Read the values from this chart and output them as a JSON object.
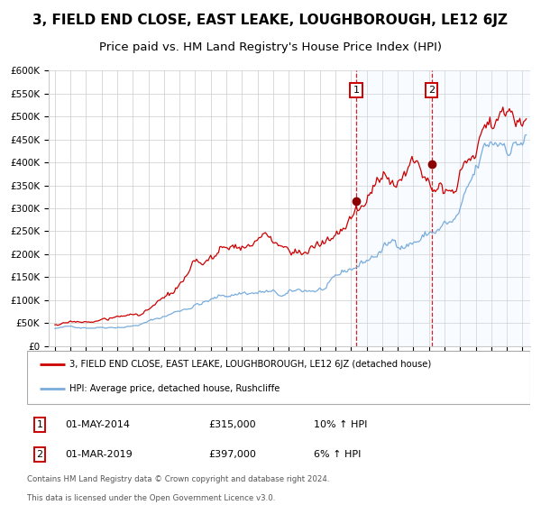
{
  "title": "3, FIELD END CLOSE, EAST LEAKE, LOUGHBOROUGH, LE12 6JZ",
  "subtitle": "Price paid vs. HM Land Registry's House Price Index (HPI)",
  "ylim": [
    0,
    600000
  ],
  "yticks": [
    0,
    50000,
    100000,
    150000,
    200000,
    250000,
    300000,
    350000,
    400000,
    450000,
    500000,
    550000,
    600000
  ],
  "ytick_labels": [
    "£0",
    "£50K",
    "£100K",
    "£150K",
    "£200K",
    "£250K",
    "£300K",
    "£350K",
    "£400K",
    "£450K",
    "£500K",
    "£550K",
    "£600K"
  ],
  "xlim_start": 1994.6,
  "xlim_end": 2025.5,
  "xticks": [
    1995,
    1996,
    1997,
    1998,
    1999,
    2000,
    2001,
    2002,
    2003,
    2004,
    2005,
    2006,
    2007,
    2008,
    2009,
    2010,
    2011,
    2012,
    2013,
    2014,
    2015,
    2016,
    2017,
    2018,
    2019,
    2020,
    2021,
    2022,
    2023,
    2024,
    2025
  ],
  "red_line_color": "#cc0000",
  "blue_line_color": "#7aaddd",
  "shade_color": "#ddeeff",
  "grid_color": "#cccccc",
  "marker1_x": 2014.33,
  "marker1_y": 315000,
  "marker2_x": 2019.17,
  "marker2_y": 397000,
  "vline1_x": 2014.33,
  "vline2_x": 2019.17,
  "legend1_label": "3, FIELD END CLOSE, EAST LEAKE, LOUGHBOROUGH, LE12 6JZ (detached house)",
  "legend2_label": "HPI: Average price, detached house, Rushcliffe",
  "table_row1": [
    "1",
    "01-MAY-2014",
    "£315,000",
    "10% ↑ HPI"
  ],
  "table_row2": [
    "2",
    "01-MAR-2019",
    "£397,000",
    "6% ↑ HPI"
  ],
  "footnote1": "Contains HM Land Registry data © Crown copyright and database right 2024.",
  "footnote2": "This data is licensed under the Open Government Licence v3.0.",
  "background_color": "#ffffff",
  "title_fontsize": 11,
  "subtitle_fontsize": 9.5
}
